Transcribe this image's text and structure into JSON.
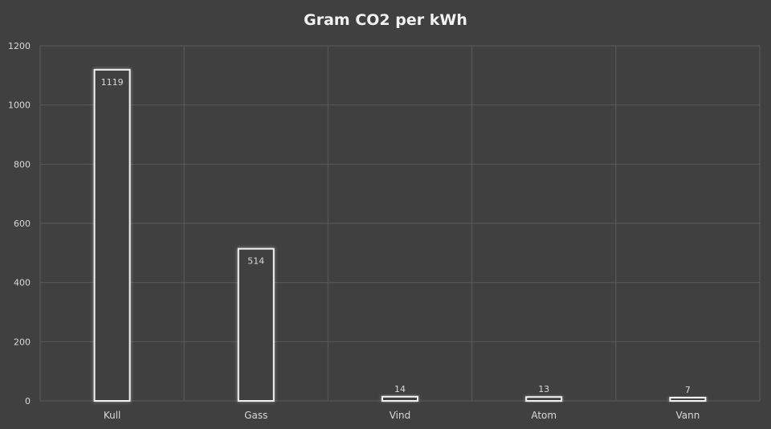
{
  "chart_data": {
    "type": "bar",
    "title": "Gram CO2 per kWh",
    "xlabel": "",
    "ylabel": "",
    "categories": [
      "Kull",
      "Gass",
      "Vind",
      "Atom",
      "Vann"
    ],
    "values": [
      1119,
      514,
      14,
      13,
      7
    ],
    "data_labels": [
      "1119",
      "514",
      "14",
      "13",
      "7"
    ],
    "ylim": [
      0,
      1200
    ],
    "yticks": [
      0,
      200,
      400,
      600,
      800,
      1000,
      1200
    ],
    "grid": true,
    "legend": "none"
  },
  "colors": {
    "background": "#404040",
    "gridline": "#5a5a5a",
    "bar_outline": "#f2f2f2",
    "bar_fill": "#404040",
    "text": "#d9d9d9",
    "title": "#f2f2f2"
  }
}
